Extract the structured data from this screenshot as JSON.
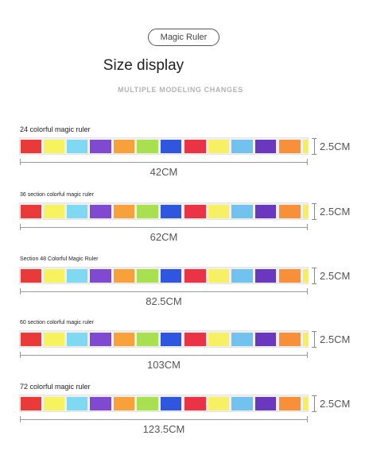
{
  "header": {
    "badge": "Magic Ruler",
    "title": "Size display",
    "subtitle": "MULTIPLE MODELING CHANGES"
  },
  "segment_colors": [
    "#ea3939",
    "#f7f35f",
    "#7fd9f2",
    "#7f4ad0",
    "#f8a039",
    "#a9e050",
    "#2e56de",
    "#ea3344",
    "#f7f062",
    "#72c2f0",
    "#6a38bf",
    "#f79038",
    "#f7ee5c"
  ],
  "rulers": [
    {
      "label": "24 colorful magic ruler",
      "length": "42CM",
      "height": "2.5CM"
    },
    {
      "label": "36 section colorful magic ruler",
      "length": "62CM",
      "height": "2.5CM"
    },
    {
      "label": "Section 48 Colorful Magic Ruler",
      "length": "82.5CM",
      "height": "2.5CM"
    },
    {
      "label": "60 section colorful magic ruler",
      "length": "103CM",
      "height": "2.5CM"
    },
    {
      "label": "72 colorful magic ruler",
      "length": "123.5CM",
      "height": "2.5CM"
    }
  ]
}
